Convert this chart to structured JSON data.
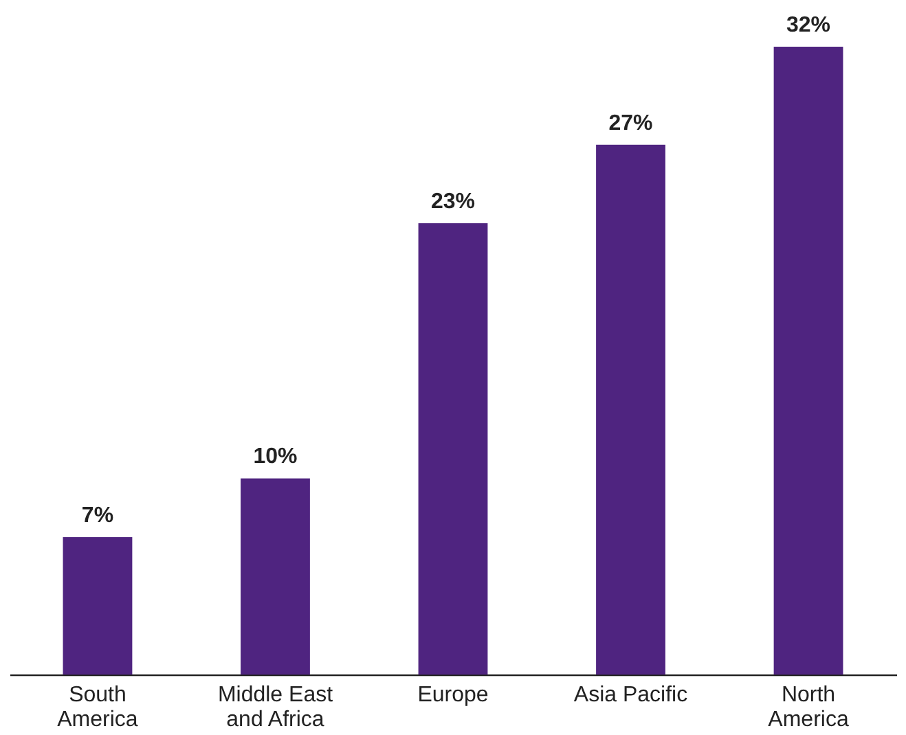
{
  "chart_data": {
    "type": "bar",
    "categories": [
      "South America",
      "Middle East and Africa",
      "Europe",
      "Asia Pacific",
      "North America"
    ],
    "values": [
      7,
      10,
      23,
      27,
      32
    ],
    "value_labels": [
      "7%",
      "10%",
      "23%",
      "27%",
      "32%"
    ],
    "color": "#4f2480",
    "tick_labels": "x",
    "grid": false
  }
}
